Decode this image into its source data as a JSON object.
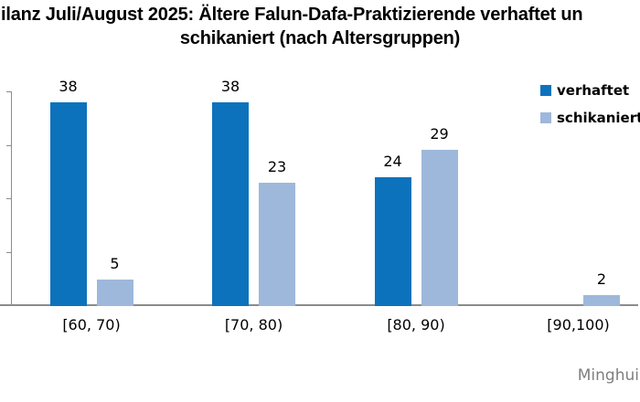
{
  "title": {
    "line1": "ilanz Juli/August 2025: Ältere Falun-Dafa-Praktizierende verhaftet un",
    "line2": "schikaniert (nach Altersgruppen)"
  },
  "legend": {
    "items": [
      {
        "label": "verhaftet",
        "color": "#0C72BC"
      },
      {
        "label": "schikaniert",
        "color": "#9DB8DB"
      }
    ]
  },
  "watermark": "Minghui",
  "colors": {
    "axis": "#8C8C8C",
    "verhaftet_bar": "#0C72BC",
    "schikaniert_bar": "#9DB8DB",
    "watermark_text": "#7F7F7F"
  },
  "chart_data": {
    "type": "bar",
    "title": "ilanz Juli/August 2025: Ältere Falun-Dafa-Praktizierende verhaftet un schikaniert (nach Altersgruppen)",
    "categories": [
      "[60, 70)",
      "[70, 80)",
      "[80, 90)",
      "[90,100)"
    ],
    "series": [
      {
        "name": "verhaftet",
        "color": "#0C72BC",
        "values": [
          38,
          38,
          24,
          0
        ]
      },
      {
        "name": "schikaniert",
        "color": "#9DB8DB",
        "values": [
          5,
          23,
          29,
          2
        ]
      }
    ],
    "ylim": [
      0,
      40
    ],
    "y_tick_step": 10,
    "grid": false,
    "legend_position": "top-right",
    "data_labels": true,
    "zero_values_hidden": true
  }
}
